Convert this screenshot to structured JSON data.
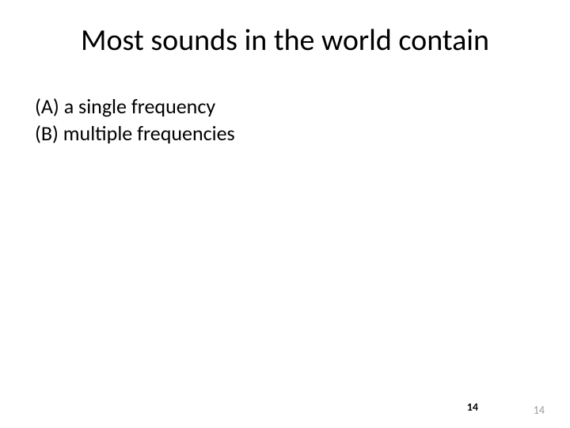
{
  "slide": {
    "title": "Most sounds in the world contain",
    "options": [
      "(A) a single frequency",
      "(B) multiple frequencies"
    ],
    "pageNumberBold": "14",
    "pageNumberLight": "14"
  },
  "styling": {
    "background_color": "#ffffff",
    "title_fontsize": 38,
    "title_color": "#000000",
    "title_weight": 400,
    "option_fontsize": 26,
    "option_color": "#000000",
    "page_bold_fontsize": 14,
    "page_bold_color": "#000000",
    "page_light_fontsize": 14,
    "page_light_color": "#999999",
    "font_family": "Calibri"
  }
}
